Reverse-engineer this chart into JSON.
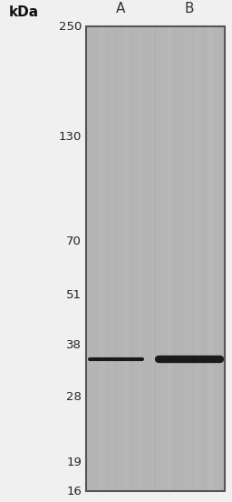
{
  "bg_color": "#f0f0f0",
  "gel_bg_color": "#b5b5b5",
  "gel_border_color": "#555555",
  "gel_border_linewidth": 1.5,
  "kda_label": "kDa",
  "kda_fontsize": 11,
  "kda_fontweight": "bold",
  "lane_labels": [
    "A",
    "B"
  ],
  "lane_label_fontsize": 11,
  "marker_weights": [
    "250",
    "130",
    "70",
    "51",
    "38",
    "28",
    "19",
    "16"
  ],
  "marker_fontsize": 9.5,
  "band_color": "#1a1a1a",
  "band_a_lw": 3.0,
  "band_b_lw": 6.0,
  "vertical_stripe_alpha": 0.18
}
